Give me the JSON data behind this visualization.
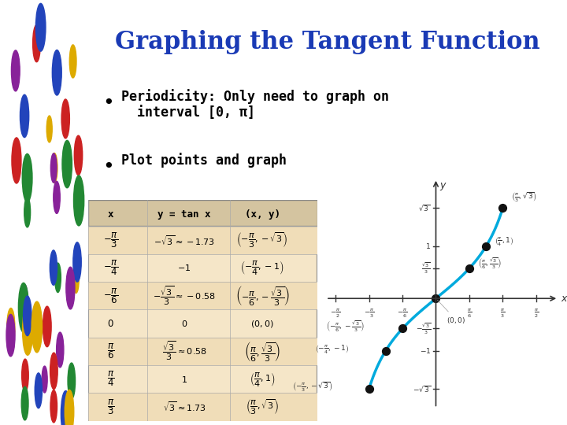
{
  "title": "Graphing the Tangent Function",
  "title_color": "#1a3ab5",
  "title_fontsize": 22,
  "bg_color": "#ffffff",
  "left_panel_color": "#c8a060",
  "bullet1": "Periodicity: Only need to graph on\n  interval [0, π]",
  "bullet2": "Plot points and graph",
  "table_header": [
    "x",
    "y = tan x",
    "(x, y)"
  ],
  "table_rows": [
    [
      "-π/3",
      "-√3 ≈ -1.73",
      "(-π/3, -√3)"
    ],
    [
      "-π/4",
      "-1",
      "(-π/4, -1)"
    ],
    [
      "-π/6",
      "-√3/3 ≈ -0.58",
      "(-π/6, -√3/3)"
    ],
    [
      "0",
      "0",
      "(0, 0)"
    ],
    [
      "π/6",
      "√3/3 ≈ 0.58",
      "(π/6, √3/3)"
    ],
    [
      "π/4",
      "1",
      "(π/4, 1)"
    ],
    [
      "π/3",
      "√3 ≈ 1.73",
      "(π/3, √3)"
    ]
  ],
  "table_bg": "#f5e6c8",
  "table_header_bg": "#d4c4a0",
  "curve_color": "#00aadd",
  "curve_lw": 2.5,
  "dot_color": "#111111",
  "dot_size": 50,
  "graph_points_x": [
    -1.0472,
    -0.7854,
    -0.5236,
    0.0,
    0.5236,
    0.7854,
    1.0472
  ],
  "graph_points_y": [
    -1.7321,
    -1.0,
    -0.5774,
    0.0,
    0.5774,
    1.0,
    1.7321
  ],
  "axis_color": "#333333",
  "label_color": "#333333",
  "pi": 3.14159265358979
}
